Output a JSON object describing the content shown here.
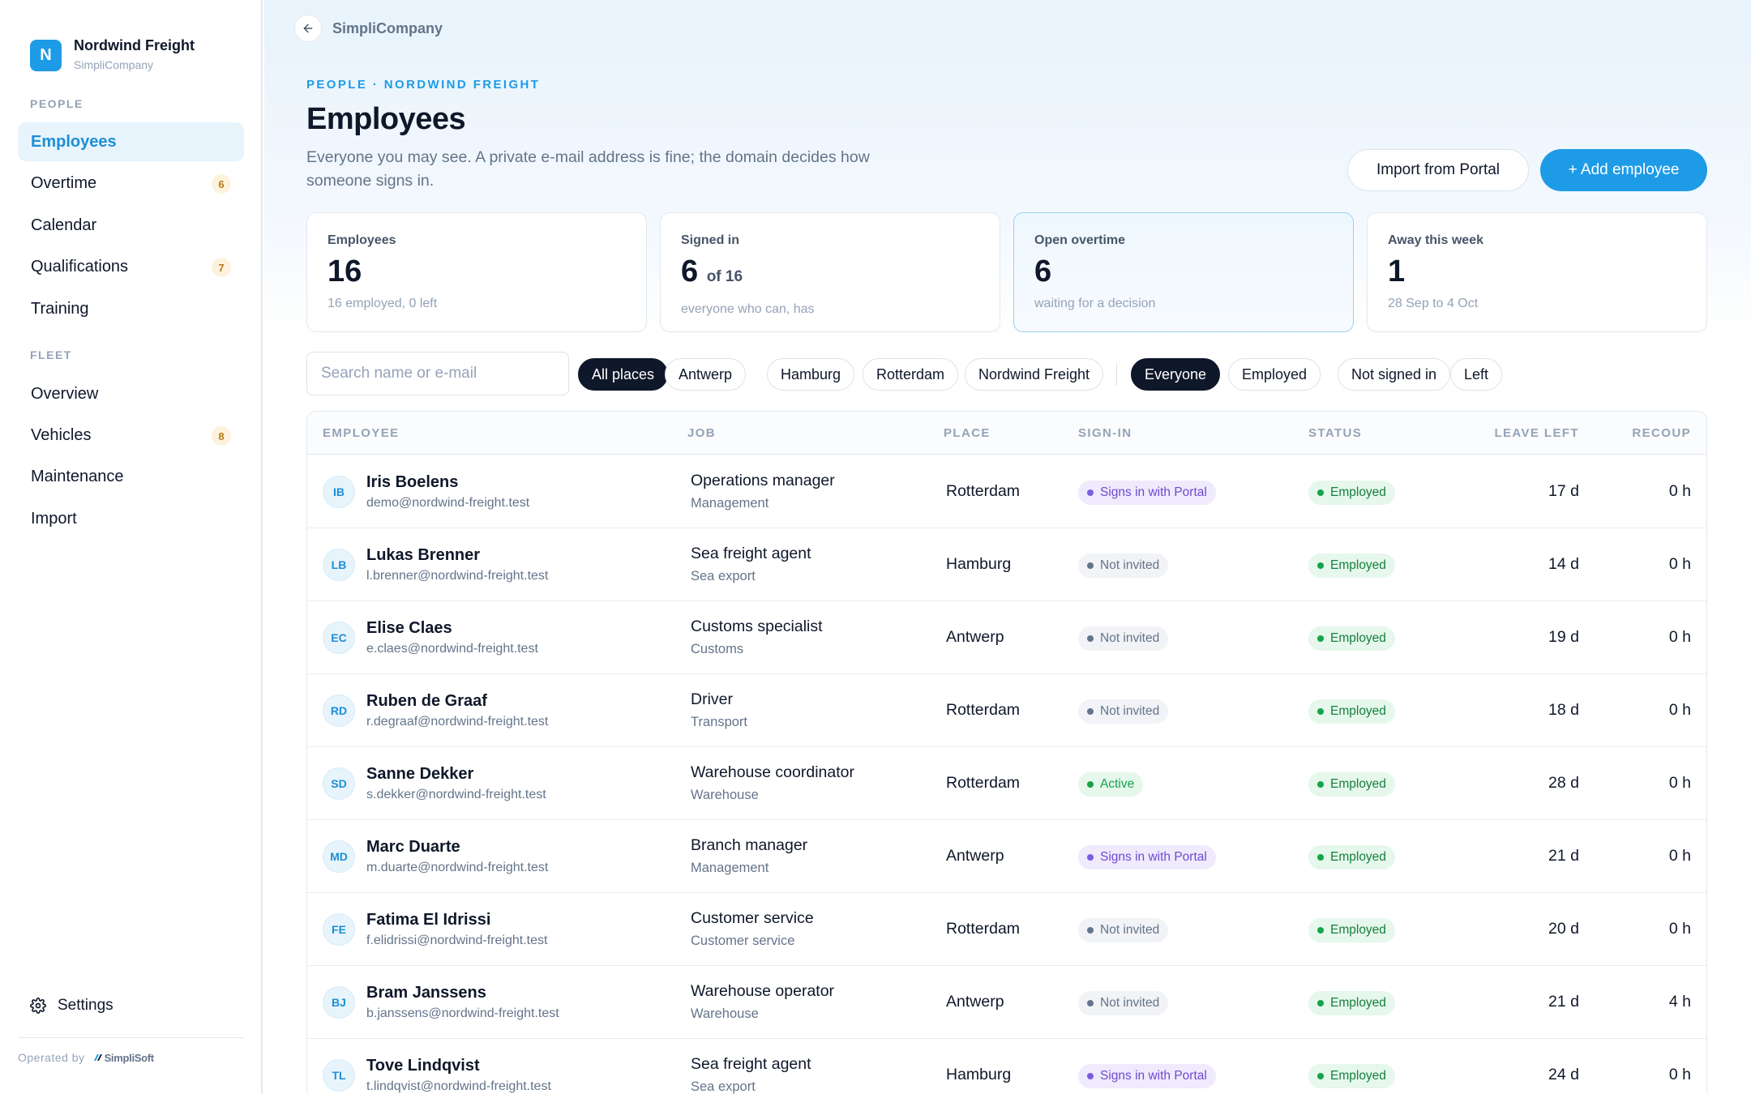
{
  "sidebar": {
    "brand_initial": "N",
    "brand_name": "Nordwind Freight",
    "brand_sub": "SimpliCompany",
    "people_label": "PEOPLE",
    "fleet_label": "FLEET",
    "people_items": [
      {
        "label": "Employees",
        "badge": ""
      },
      {
        "label": "Overtime",
        "badge": "6"
      },
      {
        "label": "Calendar",
        "badge": ""
      },
      {
        "label": "Qualifications",
        "badge": "7"
      },
      {
        "label": "Training",
        "badge": ""
      }
    ],
    "fleet_items": [
      {
        "label": "Overview",
        "badge": ""
      },
      {
        "label": "Vehicles",
        "badge": "8"
      },
      {
        "label": "Maintenance",
        "badge": ""
      },
      {
        "label": "Import",
        "badge": ""
      }
    ],
    "settings_label": "Settings",
    "operated_by": "Operated by",
    "operator_brand": "SimpliSoft"
  },
  "header": {
    "crumb": "SimpliCompany",
    "eyebrow": "PEOPLE · NORDWIND FREIGHT",
    "title": "Employees",
    "description": "Everyone you may see. A private e-mail address is fine; the domain decides how someone signs in.",
    "import_label": "Import from Portal",
    "add_label": "+ Add employee"
  },
  "stats": [
    {
      "label": "Employees",
      "value": "16",
      "of": "",
      "sub": "16 employed, 0 left"
    },
    {
      "label": "Signed in",
      "value": "6",
      "of": "of 16",
      "sub": "everyone who can, has"
    },
    {
      "label": "Open overtime",
      "value": "6",
      "of": "",
      "sub": "waiting for a decision"
    },
    {
      "label": "Away this week",
      "value": "1",
      "of": "",
      "sub": "28 Sep to 4 Oct"
    }
  ],
  "filters": {
    "search_placeholder": "Search name or e-mail",
    "places": [
      "All places",
      "Antwerp",
      "Hamburg",
      "Rotterdam",
      "Nordwind Freight"
    ],
    "statuses": [
      "Everyone",
      "Employed",
      "Not signed in",
      "Left"
    ],
    "selected_place": "All places",
    "selected_status": "Everyone"
  },
  "table": {
    "columns": [
      "EMPLOYEE",
      "JOB",
      "PLACE",
      "SIGN-IN",
      "STATUS",
      "LEAVE LEFT",
      "RECOUP"
    ],
    "rows": [
      {
        "initials": "IB",
        "name": "Iris Boelens",
        "email": "demo@nordwind-freight.test",
        "job": "Operations manager",
        "dept": "Management",
        "place": "Rotterdam",
        "signin": "Signs in with Portal",
        "signin_type": "portal",
        "status": "Employed",
        "leave": "17 d",
        "recoup": "0 h"
      },
      {
        "initials": "LB",
        "name": "Lukas Brenner",
        "email": "l.brenner@nordwind-freight.test",
        "job": "Sea freight agent",
        "dept": "Sea export",
        "place": "Hamburg",
        "signin": "Not invited",
        "signin_type": "notinv",
        "status": "Employed",
        "leave": "14 d",
        "recoup": "0 h"
      },
      {
        "initials": "EC",
        "name": "Elise Claes",
        "email": "e.claes@nordwind-freight.test",
        "job": "Customs specialist",
        "dept": "Customs",
        "place": "Antwerp",
        "signin": "Not invited",
        "signin_type": "notinv",
        "status": "Employed",
        "leave": "19 d",
        "recoup": "0 h"
      },
      {
        "initials": "RD",
        "name": "Ruben de Graaf",
        "email": "r.degraaf@nordwind-freight.test",
        "job": "Driver",
        "dept": "Transport",
        "place": "Rotterdam",
        "signin": "Not invited",
        "signin_type": "notinv",
        "status": "Employed",
        "leave": "18 d",
        "recoup": "0 h"
      },
      {
        "initials": "SD",
        "name": "Sanne Dekker",
        "email": "s.dekker@nordwind-freight.test",
        "job": "Warehouse coordinator",
        "dept": "Warehouse",
        "place": "Rotterdam",
        "signin": "Active",
        "signin_type": "active",
        "status": "Employed",
        "leave": "28 d",
        "recoup": "0 h"
      },
      {
        "initials": "MD",
        "name": "Marc Duarte",
        "email": "m.duarte@nordwind-freight.test",
        "job": "Branch manager",
        "dept": "Management",
        "place": "Antwerp",
        "signin": "Signs in with Portal",
        "signin_type": "portal",
        "status": "Employed",
        "leave": "21 d",
        "recoup": "0 h"
      },
      {
        "initials": "FE",
        "name": "Fatima El Idrissi",
        "email": "f.elidrissi@nordwind-freight.test",
        "job": "Customer service",
        "dept": "Customer service",
        "place": "Rotterdam",
        "signin": "Not invited",
        "signin_type": "notinv",
        "status": "Employed",
        "leave": "20 d",
        "recoup": "0 h"
      },
      {
        "initials": "BJ",
        "name": "Bram Janssens",
        "email": "b.janssens@nordwind-freight.test",
        "job": "Warehouse operator",
        "dept": "Warehouse",
        "place": "Antwerp",
        "signin": "Not invited",
        "signin_type": "notinv",
        "status": "Employed",
        "leave": "21 d",
        "recoup": "4 h"
      },
      {
        "initials": "TL",
        "name": "Tove Lindqvist",
        "email": "t.lindqvist@nordwind-freight.test",
        "job": "Sea freight agent",
        "dept": "Sea export",
        "place": "Hamburg",
        "signin": "Signs in with Portal",
        "signin_type": "portal",
        "status": "Employed",
        "leave": "24 d",
        "recoup": "0 h"
      }
    ]
  },
  "colors": {
    "accent": "#1e9be6",
    "portal": "#6d4bd1",
    "employed": "#15803d",
    "badge": "#b7791f"
  }
}
